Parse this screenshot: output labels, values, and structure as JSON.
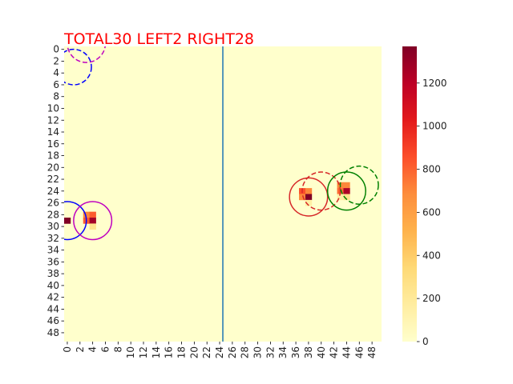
{
  "chart_data": {
    "type": "heatmap",
    "title": "TOTAL30  LEFT2 RIGHT28",
    "title_color": "#ff0000",
    "grid": false,
    "nrows": 50,
    "ncols": 50,
    "x_tick_labels": [
      "0",
      "2",
      "4",
      "6",
      "8",
      "10",
      "12",
      "14",
      "16",
      "18",
      "20",
      "22",
      "24",
      "26",
      "28",
      "30",
      "32",
      "34",
      "36",
      "38",
      "40",
      "42",
      "44",
      "46",
      "48"
    ],
    "y_tick_labels": [
      "0",
      "2",
      "4",
      "6",
      "8",
      "10",
      "12",
      "14",
      "16",
      "18",
      "20",
      "22",
      "24",
      "26",
      "28",
      "30",
      "32",
      "34",
      "36",
      "38",
      "40",
      "42",
      "44",
      "46",
      "48"
    ],
    "colormap": "YlOrRd",
    "colorbar": {
      "min": 0,
      "max": 1370,
      "ticks": [
        "0",
        "200",
        "400",
        "600",
        "800",
        "1000",
        "1200"
      ]
    },
    "cells": [
      {
        "x": 0,
        "y": 29,
        "value": 1370
      },
      {
        "x": 3,
        "y": 28,
        "value": 700
      },
      {
        "x": 4,
        "y": 28,
        "value": 820
      },
      {
        "x": 3,
        "y": 29,
        "value": 820
      },
      {
        "x": 4,
        "y": 29,
        "value": 1270
      },
      {
        "x": 4,
        "y": 30,
        "value": 250
      },
      {
        "x": 37,
        "y": 24,
        "value": 860
      },
      {
        "x": 38,
        "y": 24,
        "value": 700
      },
      {
        "x": 37,
        "y": 25,
        "value": 700
      },
      {
        "x": 38,
        "y": 25,
        "value": 1370
      },
      {
        "x": 38,
        "y": 26,
        "value": 150
      },
      {
        "x": 43,
        "y": 23,
        "value": 700
      },
      {
        "x": 44,
        "y": 23,
        "value": 700
      },
      {
        "x": 43,
        "y": 24,
        "value": 780
      },
      {
        "x": 44,
        "y": 24,
        "value": 1250
      },
      {
        "x": 44,
        "y": 25,
        "value": 250
      },
      {
        "x": 43,
        "y": 25,
        "value": 150
      }
    ],
    "divider_x": 25,
    "divider_color": "#1f77b4",
    "circles": [
      {
        "cx": 1,
        "cy": 3,
        "r": 2.8,
        "color": "#0000ff",
        "style": "dashed"
      },
      {
        "cx": 3,
        "cy": -1,
        "r": 3,
        "color": "#bf00bf",
        "style": "dashed"
      },
      {
        "cx": 0,
        "cy": 29,
        "r": 3,
        "color": "#0000ff",
        "style": "solid"
      },
      {
        "cx": 4,
        "cy": 29,
        "r": 3,
        "color": "#bf00bf",
        "style": "solid"
      },
      {
        "cx": 38,
        "cy": 25,
        "r": 3,
        "color": "#d62728",
        "style": "solid"
      },
      {
        "cx": 40,
        "cy": 24,
        "r": 3,
        "color": "#d62728",
        "style": "dashed"
      },
      {
        "cx": 44,
        "cy": 24,
        "r": 3,
        "color": "#008000",
        "style": "solid"
      },
      {
        "cx": 46,
        "cy": 23,
        "r": 3,
        "color": "#008000",
        "style": "dashed"
      }
    ],
    "background_value": 0
  }
}
